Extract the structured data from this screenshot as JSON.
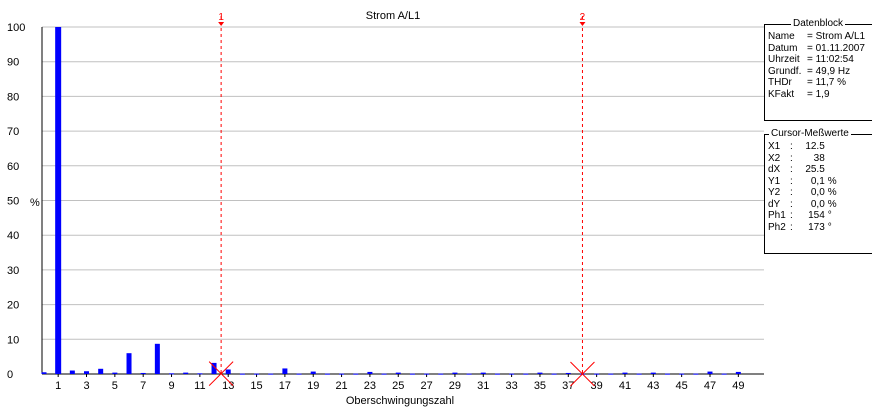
{
  "chart_data": {
    "type": "bar",
    "title": "Strom A/L1",
    "xlabel": "Oberschwingungszahl",
    "ylabel": "%",
    "ylim": [
      0,
      100
    ],
    "yticks": [
      0,
      10,
      20,
      30,
      40,
      50,
      60,
      70,
      80,
      90,
      100
    ],
    "xlim": [
      0,
      50
    ],
    "xticks": [
      1,
      3,
      5,
      7,
      9,
      11,
      13,
      15,
      17,
      19,
      21,
      23,
      25,
      27,
      29,
      31,
      33,
      35,
      37,
      39,
      41,
      43,
      45,
      47,
      49
    ],
    "grid": true,
    "bar_color": "#0000ff",
    "harmonics": [
      0,
      1,
      2,
      3,
      4,
      5,
      6,
      7,
      8,
      9,
      10,
      11,
      12,
      13,
      14,
      15,
      16,
      17,
      18,
      19,
      20,
      21,
      22,
      23,
      24,
      25,
      26,
      27,
      28,
      29,
      30,
      31,
      32,
      33,
      34,
      35,
      36,
      37,
      38,
      39,
      40,
      41,
      42,
      43,
      44,
      45,
      46,
      47,
      48,
      49
    ],
    "values": [
      0.5,
      100,
      1.0,
      0.8,
      1.5,
      0.4,
      6.0,
      0.3,
      8.7,
      0.2,
      0.4,
      0.2,
      3.2,
      1.3,
      0.1,
      0.1,
      0.1,
      1.6,
      0.1,
      0.7,
      0.1,
      0.1,
      0.1,
      0.6,
      0.1,
      0.4,
      0.1,
      0.1,
      0.1,
      0.4,
      0.1,
      0.4,
      0.1,
      0.1,
      0.1,
      0.4,
      0.1,
      0.3,
      0.1,
      0.1,
      0.1,
      0.4,
      0.1,
      0.4,
      0.1,
      0.1,
      0.1,
      0.7,
      0.1,
      0.6
    ],
    "cursors": [
      {
        "label": "1",
        "x": 12.5,
        "y": 0.1
      },
      {
        "label": "2",
        "x": 38,
        "y": 0.0
      }
    ],
    "cursor_color": "#ff0000"
  },
  "datenblock": {
    "title": "Datenblock",
    "rows": [
      {
        "key": "Name",
        "value": "= Strom A/L1"
      },
      {
        "key": "Datum",
        "value": "= 01.11.2007"
      },
      {
        "key": "Uhrzeit",
        "value": "= 11:02:54"
      },
      {
        "key": "Grundf.",
        "value": "= 49,9 Hz"
      },
      {
        "key": "THDr",
        "value": "= 11,7 %"
      },
      {
        "key": "KFakt",
        "value": "= 1,9"
      }
    ]
  },
  "cursor_values": {
    "title": "Cursor-Meßwerte",
    "rows": [
      {
        "key": "X1",
        "value": "12.5",
        "unit": ""
      },
      {
        "key": "X2",
        "value": "38",
        "unit": ""
      },
      {
        "key": "dX",
        "value": "25.5",
        "unit": ""
      },
      {
        "key": "Y1",
        "value": "0,1",
        "unit": "%"
      },
      {
        "key": "Y2",
        "value": "0,0",
        "unit": "%"
      },
      {
        "key": "dY",
        "value": "0,0",
        "unit": "%"
      },
      {
        "key": "Ph1",
        "value": "154",
        "unit": "°"
      },
      {
        "key": "Ph2",
        "value": "173",
        "unit": "°"
      }
    ]
  }
}
